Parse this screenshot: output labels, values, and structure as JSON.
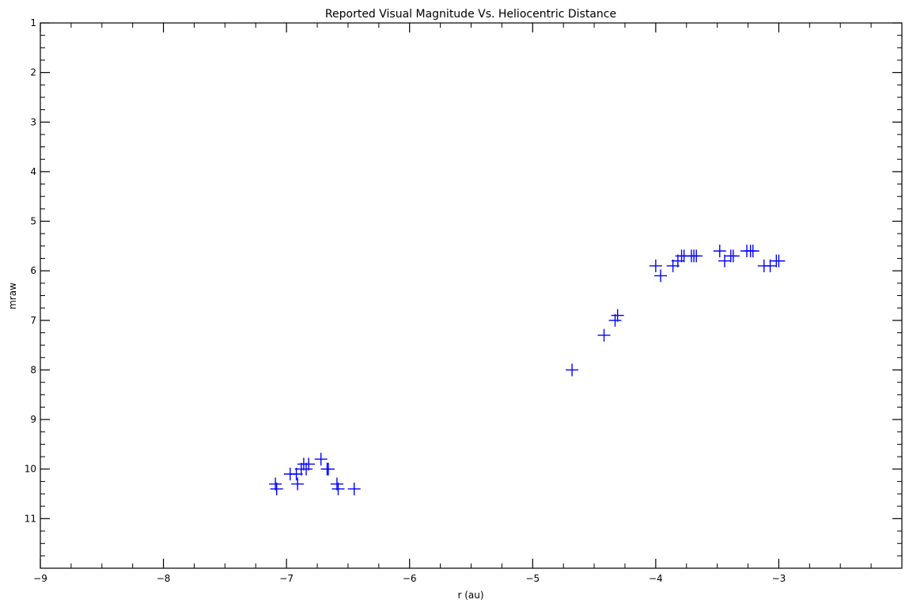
{
  "chart_data": {
    "type": "scatter",
    "title": "Reported Visual Magnitude Vs. Heliocentric Distance",
    "xlabel": "r (au)",
    "ylabel": "mraw",
    "xlim": [
      -9.0,
      -2.0
    ],
    "ylim": [
      1,
      12
    ],
    "y_inverted": true,
    "x_ticks": [
      -9,
      -8,
      -7,
      -6,
      -5,
      -4,
      -3
    ],
    "x_tick_labels": [
      "−9",
      "−8",
      "−7",
      "−6",
      "−5",
      "−4",
      "−3"
    ],
    "y_ticks": [
      1,
      2,
      3,
      4,
      5,
      6,
      7,
      8,
      9,
      10,
      11
    ],
    "y_tick_labels": [
      "1",
      "2",
      "3",
      "4",
      "5",
      "6",
      "7",
      "8",
      "9",
      "10",
      "11"
    ],
    "grid": false,
    "marker": "plus",
    "marker_color": "#0000ff",
    "points": [
      {
        "x": -7.09,
        "y": 10.3
      },
      {
        "x": -7.08,
        "y": 10.4
      },
      {
        "x": -6.97,
        "y": 10.1
      },
      {
        "x": -6.92,
        "y": 10.1
      },
      {
        "x": -6.91,
        "y": 10.3
      },
      {
        "x": -6.88,
        "y": 10.0
      },
      {
        "x": -6.86,
        "y": 9.9
      },
      {
        "x": -6.84,
        "y": 10.0
      },
      {
        "x": -6.82,
        "y": 9.9
      },
      {
        "x": -6.72,
        "y": 9.8
      },
      {
        "x": -6.67,
        "y": 10.0
      },
      {
        "x": -6.66,
        "y": 10.0
      },
      {
        "x": -6.59,
        "y": 10.3
      },
      {
        "x": -6.58,
        "y": 10.4
      },
      {
        "x": -6.45,
        "y": 10.4
      },
      {
        "x": -4.68,
        "y": 8.0
      },
      {
        "x": -4.42,
        "y": 7.3
      },
      {
        "x": -4.33,
        "y": 7.0
      },
      {
        "x": -4.31,
        "y": 6.9
      },
      {
        "x": -4.0,
        "y": 5.9
      },
      {
        "x": -3.96,
        "y": 6.1
      },
      {
        "x": -3.86,
        "y": 5.9
      },
      {
        "x": -3.82,
        "y": 5.8
      },
      {
        "x": -3.79,
        "y": 5.7
      },
      {
        "x": -3.77,
        "y": 5.7
      },
      {
        "x": -3.71,
        "y": 5.7
      },
      {
        "x": -3.69,
        "y": 5.7
      },
      {
        "x": -3.67,
        "y": 5.7
      },
      {
        "x": -3.48,
        "y": 5.6
      },
      {
        "x": -3.44,
        "y": 5.8
      },
      {
        "x": -3.39,
        "y": 5.7
      },
      {
        "x": -3.37,
        "y": 5.7
      },
      {
        "x": -3.26,
        "y": 5.6
      },
      {
        "x": -3.23,
        "y": 5.6
      },
      {
        "x": -3.21,
        "y": 5.6
      },
      {
        "x": -3.12,
        "y": 5.9
      },
      {
        "x": -3.07,
        "y": 5.9
      },
      {
        "x": -3.02,
        "y": 5.8
      },
      {
        "x": -3.0,
        "y": 5.8
      }
    ]
  }
}
